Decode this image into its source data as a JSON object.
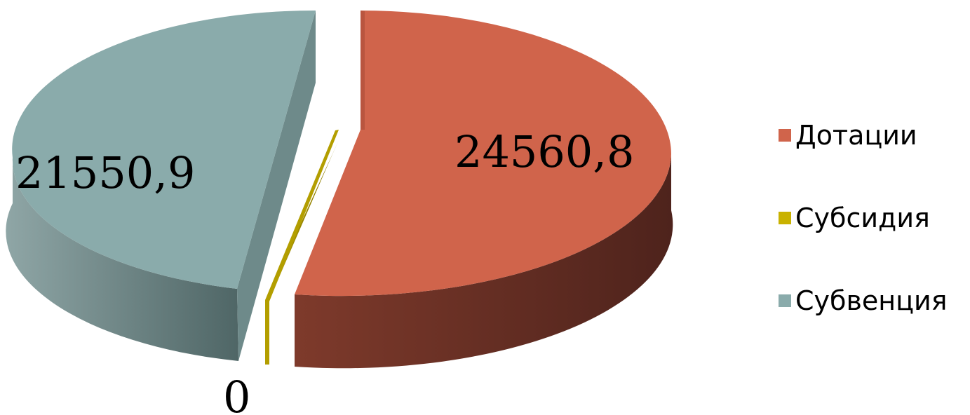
{
  "chart_data": {
    "type": "pie",
    "style": "3d-exploded",
    "legend_position": "right",
    "categories": [
      "Дотации",
      "Субсидия",
      "Субвенция"
    ],
    "values": [
      24560.8,
      0,
      21550.9
    ],
    "value_labels": [
      "24560,8",
      "0",
      "21550,9"
    ],
    "colors": [
      "#D0644B",
      "#C9B200",
      "#8AABAB"
    ]
  }
}
